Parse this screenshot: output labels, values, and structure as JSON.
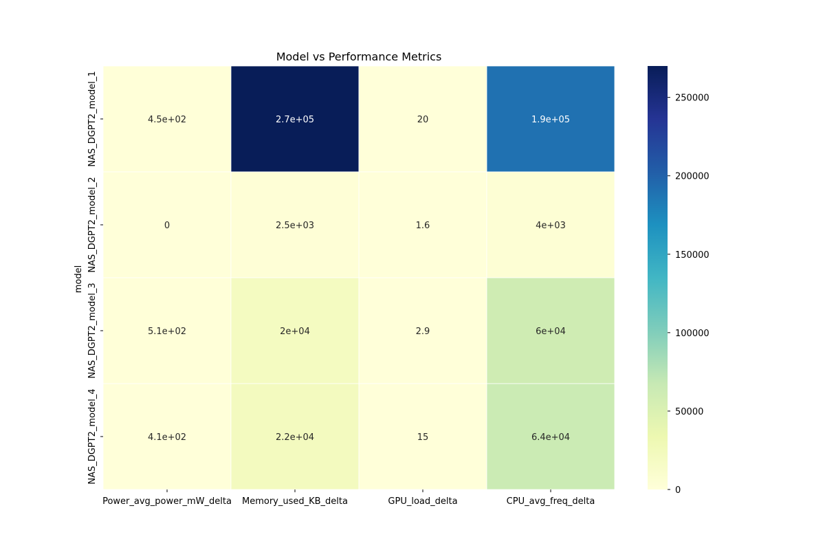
{
  "chart_data": {
    "type": "heatmap",
    "title": "Model vs Performance Metrics",
    "xlabel": "",
    "ylabel": "model",
    "x_categories": [
      "Power_avg_power_mW_delta",
      "Memory_used_KB_delta",
      "GPU_load_delta",
      "CPU_avg_freq_delta"
    ],
    "y_categories": [
      "NAS_DGPT2_model_1",
      "NAS_DGPT2_model_2",
      "NAS_DGPT2_model_3",
      "NAS_DGPT2_model_4"
    ],
    "values": [
      [
        450,
        270000,
        20,
        190000
      ],
      [
        0,
        2500,
        1.6,
        4000
      ],
      [
        510,
        20000,
        2.9,
        60000
      ],
      [
        410,
        22000,
        15,
        64000
      ]
    ],
    "annotations": [
      [
        "4.5e+02",
        "2.7e+05",
        "20",
        "1.9e+05"
      ],
      [
        "0",
        "2.5e+03",
        "1.6",
        "4e+03"
      ],
      [
        "5.1e+02",
        "2e+04",
        "2.9",
        "6e+04"
      ],
      [
        "4.1e+02",
        "2.2e+04",
        "15",
        "6.4e+04"
      ]
    ],
    "colormap": "YlGnBu",
    "colormap_stops": [
      "#ffffd9",
      "#edf8b1",
      "#c7e9b4",
      "#7fcdbb",
      "#41b6c4",
      "#1d91c0",
      "#225ea8",
      "#253494",
      "#081d58"
    ],
    "vmin": 0,
    "vmax": 270000,
    "colorbar_ticks": [
      {
        "value": 0,
        "label": "0"
      },
      {
        "value": 50000,
        "label": "50000"
      },
      {
        "value": 100000,
        "label": "100000"
      },
      {
        "value": 150000,
        "label": "150000"
      },
      {
        "value": 200000,
        "label": "200000"
      },
      {
        "value": 250000,
        "label": "250000"
      }
    ],
    "grid": false,
    "legend": "colorbar-right"
  }
}
